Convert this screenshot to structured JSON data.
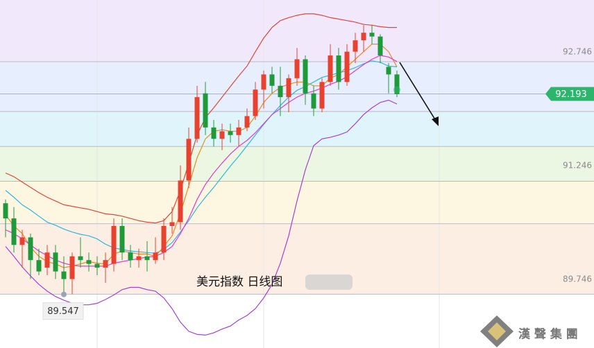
{
  "chart_data": {
    "type": "candlestick",
    "title": "美元指数 日线图",
    "categories": [
      null,
      null,
      null,
      null,
      null,
      null,
      null,
      null,
      null,
      null,
      null,
      null,
      null,
      null,
      null,
      null,
      null,
      null,
      null,
      null,
      null,
      null,
      null,
      null,
      null,
      null,
      null,
      null,
      null,
      null,
      null,
      null,
      null,
      null,
      null,
      null,
      null,
      null,
      null,
      null,
      null,
      null,
      null,
      null,
      null,
      null,
      null,
      null
    ],
    "open": [
      90.75,
      90.55,
      90.2,
      90.3,
      90.0,
      89.9,
      90.1,
      89.85,
      89.75,
      90.05,
      90.0,
      89.95,
      89.9,
      89.95,
      90.45,
      90.1,
      90.0,
      90.05,
      90.0,
      90.1,
      90.45,
      90.5,
      91.05,
      91.6,
      92.2,
      91.75,
      91.6,
      91.7,
      91.65,
      91.75,
      91.9,
      92.25,
      92.45,
      92.3,
      92.15,
      92.4,
      92.65,
      92.2,
      92.0,
      92.35,
      92.7,
      92.35,
      92.75,
      92.9,
      93.0,
      92.95,
      92.55,
      92.45
    ],
    "high": [
      90.8,
      90.7,
      90.4,
      90.35,
      90.15,
      90.2,
      90.2,
      90.05,
      90.1,
      90.3,
      90.1,
      90.05,
      90.1,
      90.55,
      90.55,
      90.2,
      90.15,
      90.25,
      90.3,
      90.55,
      90.7,
      91.25,
      91.75,
      92.3,
      92.35,
      91.85,
      91.8,
      91.8,
      91.85,
      92.0,
      92.35,
      92.5,
      92.55,
      92.55,
      92.45,
      92.8,
      92.7,
      92.3,
      92.4,
      92.85,
      92.8,
      92.85,
      93.0,
      93.1,
      93.1,
      92.98,
      92.6,
      92.5
    ],
    "low": [
      90.3,
      90.1,
      89.9,
      89.75,
      89.8,
      89.8,
      89.75,
      89.547,
      89.55,
      89.9,
      89.85,
      89.8,
      89.7,
      89.85,
      90.0,
      89.9,
      89.9,
      89.85,
      89.95,
      90.0,
      90.35,
      90.4,
      90.95,
      91.55,
      91.65,
      91.5,
      91.45,
      91.55,
      91.5,
      91.7,
      91.85,
      92.0,
      92.2,
      91.9,
      91.95,
      92.3,
      92.05,
      91.9,
      91.95,
      92.3,
      92.25,
      92.3,
      92.6,
      92.75,
      92.85,
      92.6,
      92.2,
      92.15
    ],
    "close": [
      90.55,
      90.2,
      90.3,
      90.0,
      89.85,
      90.1,
      89.85,
      89.75,
      90.05,
      90.0,
      89.95,
      89.9,
      90.0,
      90.45,
      90.1,
      90.0,
      90.05,
      90.0,
      90.1,
      90.45,
      90.5,
      91.05,
      91.6,
      92.15,
      91.75,
      91.6,
      91.7,
      91.65,
      91.75,
      91.9,
      92.25,
      92.45,
      92.3,
      92.15,
      92.4,
      92.65,
      92.2,
      92.0,
      92.35,
      92.7,
      92.35,
      92.75,
      92.9,
      93.0,
      92.95,
      92.7,
      92.45,
      92.19
    ],
    "up_color": "#e8412f",
    "down_color": "#1f9a3a",
    "lines": [
      {
        "color": "#e0473a",
        "values": [
          91.15,
          91.1,
          91.03,
          90.96,
          90.89,
          90.83,
          90.78,
          90.73,
          90.71,
          90.69,
          90.67,
          90.64,
          90.61,
          90.6,
          90.58,
          90.55,
          90.52,
          90.5,
          90.49,
          90.52,
          90.64,
          90.92,
          91.28,
          91.65,
          91.88,
          92.01,
          92.15,
          92.29,
          92.43,
          92.56,
          92.75,
          92.93,
          93.07,
          93.16,
          93.2,
          93.23,
          93.25,
          93.25,
          93.23,
          93.2,
          93.18,
          93.16,
          93.14,
          93.11,
          93.1,
          93.08,
          93.07,
          93.07
        ]
      },
      {
        "color": "#a240d8",
        "values": [
          90.18,
          90.05,
          89.91,
          89.79,
          89.68,
          89.59,
          89.52,
          89.47,
          89.43,
          89.41,
          89.41,
          89.43,
          89.48,
          89.54,
          89.61,
          89.64,
          89.64,
          89.61,
          89.59,
          89.5,
          89.36,
          89.18,
          89.06,
          89.02,
          89.01,
          89.04,
          89.09,
          89.13,
          89.21,
          89.27,
          89.36,
          89.5,
          89.68,
          89.96,
          90.32,
          90.78,
          91.19,
          91.51,
          91.6,
          91.62,
          91.65,
          91.69,
          91.8,
          91.92,
          92.01,
          92.08,
          92.11,
          92.06
        ]
      },
      {
        "color": "#2cb7e0",
        "values": [
          90.92,
          90.83,
          90.73,
          90.66,
          90.58,
          90.5,
          90.46,
          90.41,
          90.37,
          90.34,
          90.32,
          90.28,
          90.21,
          90.16,
          90.14,
          90.12,
          90.11,
          90.1,
          90.09,
          90.14,
          90.23,
          90.37,
          90.52,
          90.69,
          90.83,
          90.96,
          91.1,
          91.24,
          91.37,
          91.51,
          91.65,
          91.79,
          91.92,
          92.04,
          92.15,
          92.24,
          92.29,
          92.35,
          92.41,
          92.44,
          92.47,
          92.5,
          92.54,
          92.59,
          92.63,
          92.61,
          92.56,
          92.55
        ]
      },
      {
        "color": "#f08a1c",
        "values": [
          90.6,
          90.45,
          90.35,
          90.17,
          90.05,
          89.98,
          89.95,
          89.9,
          89.92,
          89.95,
          89.98,
          89.96,
          89.95,
          90.08,
          90.12,
          90.1,
          90.08,
          90.08,
          90.05,
          90.18,
          90.32,
          90.62,
          90.98,
          91.35,
          91.6,
          91.7,
          91.72,
          91.7,
          91.7,
          91.75,
          91.9,
          92.08,
          92.2,
          92.28,
          92.32,
          92.35,
          92.35,
          92.3,
          92.3,
          92.4,
          92.45,
          92.55,
          92.65,
          92.75,
          92.85,
          92.85,
          92.75,
          92.55
        ]
      },
      {
        "color": "#e23ad0",
        "values": [
          90.4,
          90.35,
          90.28,
          90.2,
          90.12,
          90.06,
          90.0,
          89.96,
          89.93,
          89.92,
          89.92,
          89.92,
          89.92,
          89.96,
          89.98,
          90.0,
          90.02,
          90.04,
          90.05,
          90.1,
          90.18,
          90.35,
          90.55,
          90.8,
          91.0,
          91.15,
          91.28,
          91.4,
          91.5,
          91.58,
          91.68,
          91.8,
          91.92,
          92.0,
          92.08,
          92.15,
          92.2,
          92.23,
          92.27,
          92.32,
          92.36,
          92.42,
          92.5,
          92.58,
          92.65,
          92.7,
          92.68,
          92.62
        ]
      }
    ],
    "ylim": [
      88.84,
      93.432
    ],
    "yticks": [
      92.746,
      91.246,
      89.746
    ],
    "levels": [
      92.618,
      91.96,
      91.5,
      91.04,
      90.48,
      89.55
    ],
    "band_colors": [
      "#f1e9fb",
      "#e7eefd",
      "#dff5fb",
      "#ecf7e3",
      "#fdf6e0",
      "#fdeee4"
    ],
    "last_price": 92.193,
    "last_price_color": "#2db56c",
    "min_low": 89.547
  },
  "watermark": "漢 聲 集 團"
}
